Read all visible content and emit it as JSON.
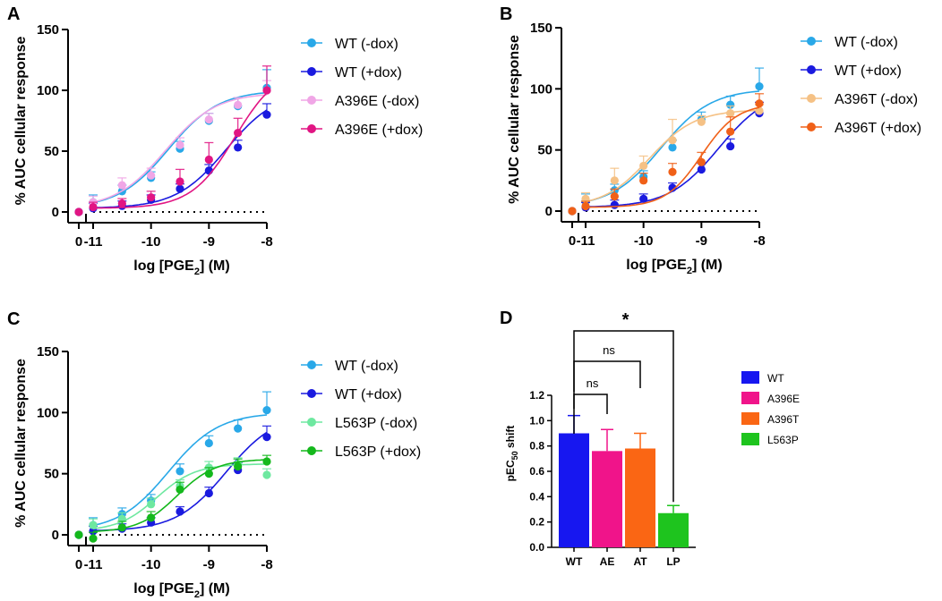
{
  "chart_data": [
    {
      "panel": "A",
      "type": "line",
      "xlabel_prefix": "log [PGE",
      "xlabel_sub": "2",
      "xlabel_suffix": "] (M)",
      "ylabel": "% AUC cellular response",
      "xlim": [
        -11,
        -8
      ],
      "ylim": [
        0,
        150
      ],
      "yticks": [
        "0",
        "50",
        "100",
        "150"
      ],
      "xticks": [
        "-11",
        "-10",
        "-9",
        "-8"
      ],
      "zero_tick": "0",
      "series": [
        {
          "name": "WT (-dox)",
          "color": "#29a8e8",
          "x": [
            -11,
            -10.5,
            -10,
            -9.5,
            -9,
            -8.5,
            -8
          ],
          "values": [
            8,
            17,
            28,
            52,
            75,
            87,
            102
          ],
          "errors": [
            6,
            5,
            5,
            6,
            6,
            7,
            15
          ],
          "zero_value": 0,
          "fit": {
            "bottom": 3,
            "top": 100,
            "logec50": -9.7,
            "hill": 1.0
          }
        },
        {
          "name": "WT (+dox)",
          "color": "#1a1adf",
          "x": [
            -11,
            -10.5,
            -10,
            -9.5,
            -9,
            -8.5,
            -8
          ],
          "values": [
            3,
            5,
            10,
            19,
            34,
            53,
            80
          ],
          "errors": [
            4,
            4,
            4,
            4,
            5,
            6,
            9
          ],
          "zero_value": 0,
          "fit": {
            "bottom": 3,
            "top": 100,
            "logec50": -8.7,
            "hill": 1.0
          }
        },
        {
          "name": "A396E (-dox)",
          "color": "#f0a6e6",
          "x": [
            -11,
            -10.5,
            -10,
            -9.5,
            -9,
            -8.5,
            -8
          ],
          "values": [
            8,
            22,
            30,
            55,
            76,
            88,
            100
          ],
          "errors": [
            5,
            6,
            6,
            6,
            5,
            6,
            8
          ],
          "zero_value": 0,
          "fit": {
            "bottom": 3,
            "top": 98,
            "logec50": -9.75,
            "hill": 1.0
          }
        },
        {
          "name": "A396E (+dox)",
          "color": "#e11583",
          "x": [
            -11,
            -10.5,
            -10,
            -9.5,
            -9,
            -8.5,
            -8
          ],
          "values": [
            4,
            7,
            12,
            25,
            43,
            65,
            100
          ],
          "errors": [
            4,
            4,
            5,
            10,
            14,
            12,
            20
          ],
          "zero_value": 0,
          "fit": {
            "bottom": 3,
            "top": 120,
            "logec50": -8.55,
            "hill": 1.15
          }
        }
      ]
    },
    {
      "panel": "B",
      "type": "line",
      "xlabel_prefix": "log [PGE",
      "xlabel_sub": "2",
      "xlabel_suffix": "] (M)",
      "ylabel": "% AUC cellular response",
      "xlim": [
        -11,
        -8
      ],
      "ylim": [
        0,
        150
      ],
      "yticks": [
        "0",
        "50",
        "100",
        "150"
      ],
      "xticks": [
        "-11",
        "-10",
        "-9",
        "-8"
      ],
      "zero_tick": "0",
      "series": [
        {
          "name": "WT (-dox)",
          "color": "#29a8e8",
          "x": [
            -11,
            -10.5,
            -10,
            -9.5,
            -9,
            -8.5,
            -8
          ],
          "values": [
            8,
            17,
            28,
            52,
            75,
            87,
            102
          ],
          "errors": [
            6,
            5,
            5,
            6,
            6,
            7,
            15
          ],
          "zero_value": 0,
          "fit": {
            "bottom": 3,
            "top": 100,
            "logec50": -9.7,
            "hill": 1.0
          }
        },
        {
          "name": "WT (+dox)",
          "color": "#1a1adf",
          "x": [
            -11,
            -10.5,
            -10,
            -9.5,
            -9,
            -8.5,
            -8
          ],
          "values": [
            3,
            5,
            10,
            19,
            34,
            53,
            80
          ],
          "errors": [
            4,
            4,
            4,
            4,
            5,
            6,
            9
          ],
          "zero_value": 0,
          "fit": {
            "bottom": 3,
            "top": 100,
            "logec50": -8.7,
            "hill": 1.0
          }
        },
        {
          "name": "A396T (-dox)",
          "color": "#f5c185",
          "x": [
            -11,
            -10.5,
            -10,
            -9.5,
            -9,
            -8.5,
            -8
          ],
          "values": [
            10,
            25,
            37,
            58,
            73,
            80,
            82
          ],
          "errors": [
            5,
            10,
            8,
            17,
            5,
            6,
            5
          ],
          "zero_value": 0,
          "fit": {
            "bottom": 3,
            "top": 83,
            "logec50": -9.9,
            "hill": 1.1
          }
        },
        {
          "name": "A396T (+dox)",
          "color": "#f06018",
          "x": [
            -11,
            -10.5,
            -10,
            -9.5,
            -9,
            -8.5,
            -8
          ],
          "values": [
            4,
            12,
            25,
            32,
            40,
            65,
            88
          ],
          "errors": [
            4,
            6,
            6,
            7,
            8,
            12,
            8
          ],
          "zero_value": 0,
          "fit": {
            "bottom": 3,
            "top": 88,
            "logec50": -9.0,
            "hill": 1.4
          }
        }
      ]
    },
    {
      "panel": "C",
      "type": "line",
      "xlabel_prefix": "log [PGE",
      "xlabel_sub": "2",
      "xlabel_suffix": "] (M)",
      "ylabel": "% AUC cellular response",
      "xlim": [
        -11,
        -8
      ],
      "ylim": [
        0,
        150
      ],
      "yticks": [
        "0",
        "50",
        "100",
        "150"
      ],
      "xticks": [
        "-11",
        "-10",
        "-9",
        "-8"
      ],
      "zero_tick": "0",
      "series": [
        {
          "name": "WT (-dox)",
          "color": "#29a8e8",
          "x": [
            -11,
            -10.5,
            -10,
            -9.5,
            -9,
            -8.5,
            -8
          ],
          "values": [
            8,
            17,
            28,
            52,
            75,
            87,
            102
          ],
          "errors": [
            6,
            5,
            5,
            6,
            6,
            7,
            15
          ],
          "zero_value": 0,
          "fit": {
            "bottom": 3,
            "top": 100,
            "logec50": -9.7,
            "hill": 1.0
          }
        },
        {
          "name": "WT (+dox)",
          "color": "#1a1adf",
          "x": [
            -11,
            -10.5,
            -10,
            -9.5,
            -9,
            -8.5,
            -8
          ],
          "values": [
            3,
            5,
            10,
            19,
            34,
            53,
            80
          ],
          "errors": [
            4,
            4,
            4,
            4,
            5,
            6,
            9
          ],
          "zero_value": 0,
          "fit": {
            "bottom": 3,
            "top": 100,
            "logec50": -8.7,
            "hill": 1.0
          }
        },
        {
          "name": "L563P (-dox)",
          "color": "#6ee8a0",
          "x": [
            -11,
            -10.5,
            -10,
            -9.5,
            -9,
            -8.5,
            -8
          ],
          "values": [
            8,
            13,
            25,
            40,
            55,
            58,
            49
          ],
          "errors": [
            5,
            5,
            5,
            5,
            5,
            5,
            5
          ],
          "zero_value": 0,
          "fit": {
            "bottom": 3,
            "top": 58,
            "logec50": -9.9,
            "hill": 1.3
          }
        },
        {
          "name": "L563P (+dox)",
          "color": "#14b81c",
          "x": [
            -11,
            -10.5,
            -10,
            -9.5,
            -9,
            -8.5,
            -8
          ],
          "values": [
            -3,
            6,
            14,
            37,
            50,
            56,
            60
          ],
          "errors": [
            5,
            5,
            5,
            6,
            5,
            6,
            5
          ],
          "zero_value": 0,
          "fit": {
            "bottom": 2,
            "top": 62,
            "logec50": -9.55,
            "hill": 1.3
          }
        }
      ]
    },
    {
      "panel": "D",
      "type": "bar",
      "ylabel_prefix": "pEC",
      "ylabel_sub": "50",
      "ylabel_suffix": " shift",
      "ylim": [
        0,
        1.2
      ],
      "yticks": [
        "0.0",
        "0.2",
        "0.4",
        "0.6",
        "0.8",
        "1.0",
        "1.2"
      ],
      "categories": [
        "WT",
        "AE",
        "AT",
        "LP"
      ],
      "values": [
        0.9,
        0.76,
        0.78,
        0.27
      ],
      "errors": [
        0.14,
        0.17,
        0.12,
        0.06
      ],
      "colors": [
        "#1717f0",
        "#f0148a",
        "#fa6614",
        "#1ec41e"
      ],
      "legend": [
        "WT",
        "A396E",
        "A396T",
        "L563P"
      ],
      "significance": [
        {
          "from": "WT",
          "to": "AE",
          "label": "ns"
        },
        {
          "from": "WT",
          "to": "AT",
          "label": "ns"
        },
        {
          "from": "WT",
          "to": "LP",
          "label": "*"
        }
      ]
    }
  ]
}
